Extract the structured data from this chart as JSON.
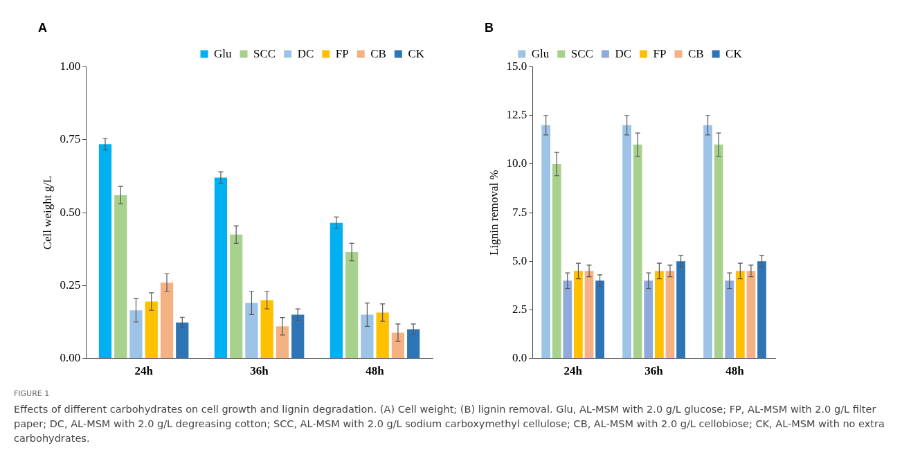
{
  "chart_data": [
    {
      "type": "bar",
      "title": "A",
      "ylabel": "Cell weight g/L",
      "categories": [
        "24h",
        "36h",
        "48h"
      ],
      "series": [
        {
          "name": "Glu",
          "color": "#00b0f0",
          "values": [
            0.735,
            0.62,
            0.465
          ],
          "errors": [
            0.02,
            0.02,
            0.02
          ]
        },
        {
          "name": "SCC",
          "color": "#a9d18e",
          "values": [
            0.56,
            0.425,
            0.365
          ],
          "errors": [
            0.03,
            0.03,
            0.03
          ]
        },
        {
          "name": "DC",
          "color": "#9dc3e6",
          "values": [
            0.165,
            0.19,
            0.15
          ],
          "errors": [
            0.04,
            0.04,
            0.04
          ]
        },
        {
          "name": "FP",
          "color": "#ffc000",
          "values": [
            0.195,
            0.2,
            0.157
          ],
          "errors": [
            0.03,
            0.03,
            0.03
          ]
        },
        {
          "name": "CB",
          "color": "#f4b183",
          "values": [
            0.26,
            0.11,
            0.088
          ],
          "errors": [
            0.03,
            0.03,
            0.03
          ]
        },
        {
          "name": "CK",
          "color": "#2e75b6",
          "values": [
            0.123,
            0.15,
            0.1
          ],
          "errors": [
            0.018,
            0.02,
            0.018
          ]
        }
      ],
      "ylim": [
        0,
        1
      ],
      "yticks": [
        {
          "value": 0,
          "label": "0.00"
        },
        {
          "value": 0.25,
          "label": "0.25"
        },
        {
          "value": 0.5,
          "label": "0.50"
        },
        {
          "value": 0.75,
          "label": "0.75"
        },
        {
          "value": 1,
          "label": "1.00"
        }
      ],
      "grid": false,
      "legend": "top right",
      "annotations": [
        "FIGURE 1",
        "Effects of different carbohydrates on cell growth and lignin degradation. (A) Cell weight; (B) lignin removal. Glu, AL-MSM with 2.0 g/L glucose; FP, AL-MSM with 2.0 g/L filter paper; DC, AL-MSM with 2.0 g/L degreasing cotton; SCC, AL-MSM with 2.0 g/L sodium carboxymethyl cellulose; CB, AL-MSM with 2.0 g/L cellobiose; CK, AL-MSM with no extra carbohydrates."
      ]
    },
    {
      "type": "bar",
      "title": "B",
      "ylabel": "Lignin removal %",
      "categories": [
        "24h",
        "36h",
        "48h"
      ],
      "series": [
        {
          "name": "Glu",
          "color": "#9dc3e6",
          "values": [
            12,
            12,
            12
          ],
          "errors": [
            0.5,
            0.5,
            0.5
          ]
        },
        {
          "name": "SCC",
          "color": "#a9d18e",
          "values": [
            10,
            11,
            11
          ],
          "errors": [
            0.6,
            0.6,
            0.6
          ]
        },
        {
          "name": "DC",
          "color": "#8faadc",
          "values": [
            4,
            4,
            4
          ],
          "errors": [
            0.4,
            0.4,
            0.4
          ]
        },
        {
          "name": "FP",
          "color": "#ffc000",
          "values": [
            4.5,
            4.5,
            4.5
          ],
          "errors": [
            0.4,
            0.4,
            0.4
          ]
        },
        {
          "name": "CB",
          "color": "#f4b183",
          "values": [
            4.5,
            4.5,
            4.5
          ],
          "errors": [
            0.3,
            0.3,
            0.3
          ]
        },
        {
          "name": "CK",
          "color": "#2e75b6",
          "values": [
            4,
            5,
            5
          ],
          "errors": [
            0.3,
            0.3,
            0.3
          ]
        }
      ],
      "ylim": [
        0,
        15
      ],
      "yticks": [
        {
          "value": 0,
          "label": "0.0"
        },
        {
          "value": 2.5,
          "label": "2.5"
        },
        {
          "value": 5,
          "label": "5.0"
        },
        {
          "value": 7.5,
          "label": "7.5"
        },
        {
          "value": 10,
          "label": "10.0"
        },
        {
          "value": 12.5,
          "label": "12.5"
        },
        {
          "value": 15,
          "label": "15.0"
        }
      ],
      "grid": false,
      "legend": "top"
    }
  ]
}
